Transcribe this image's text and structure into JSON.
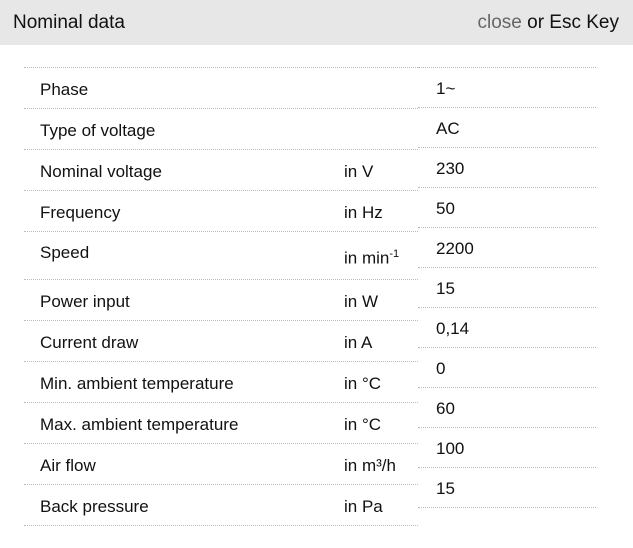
{
  "header": {
    "title": "Nominal data",
    "close_label": "close",
    "esc_text": " or Esc Key"
  },
  "rows": [
    {
      "label": "Phase",
      "unit": "",
      "value": "1~"
    },
    {
      "label": "Type of voltage",
      "unit": "",
      "value": "AC"
    },
    {
      "label": "Nominal voltage",
      "unit": "in V",
      "value": "230"
    },
    {
      "label": "Frequency",
      "unit": "in Hz",
      "value": "50"
    },
    {
      "label": "Speed",
      "unit": "in min",
      "unit_sup": "-1",
      "value": "2200"
    },
    {
      "label": "Power input",
      "unit": "in W",
      "value": "15"
    },
    {
      "label": "Current draw",
      "unit": "in A",
      "value": "0,14"
    },
    {
      "label": "Min. ambient temperature",
      "unit": "in °C",
      "value": "0"
    },
    {
      "label": "Max. ambient temperature",
      "unit": "in °C",
      "value": "60"
    },
    {
      "label": "Air flow",
      "unit": "in m³/h",
      "value": "100"
    },
    {
      "label": "Back pressure",
      "unit": "in Pa",
      "value": "15"
    }
  ]
}
